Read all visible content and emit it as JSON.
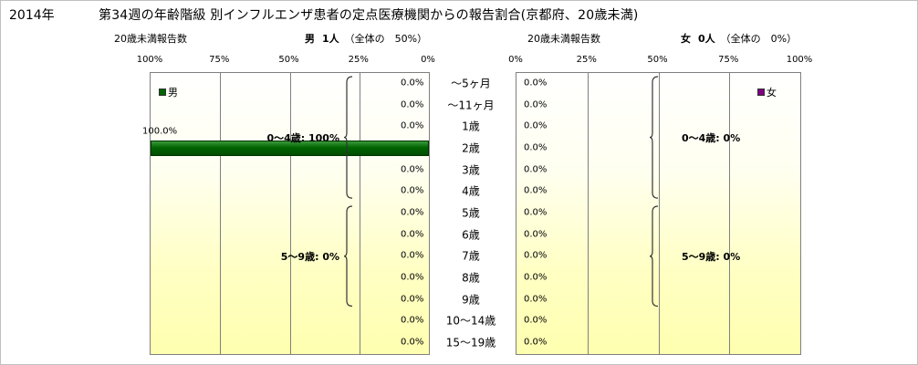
{
  "title": {
    "year": "2014年",
    "main": "第34週の年齢階級 別インフルエンザ患者の定点医療機関からの報告割合(京都府、20歳未満)"
  },
  "chart_data": [
    {
      "type": "bar",
      "orientation": "horizontal",
      "panel": "male",
      "subtitle_left": "20歳未満報告数",
      "subtitle_right_label": "男",
      "subtitle_right_count": "1人",
      "subtitle_right_share": "（全体の　50%）",
      "legend": "男",
      "color": "#006400",
      "direction": "right-to-left",
      "xlim": [
        0,
        100
      ],
      "tick_labels": [
        "100%",
        "75%",
        "50%",
        "25%",
        "0%"
      ],
      "categories": [
        "～5ヶ月",
        "～11ヶ月",
        "1歳",
        "2歳",
        "3歳",
        "4歳",
        "5歳",
        "6歳",
        "7歳",
        "8歳",
        "9歳",
        "10～14歳",
        "15～19歳"
      ],
      "values": [
        0,
        0,
        0,
        100,
        0,
        0,
        0,
        0,
        0,
        0,
        0,
        0,
        0
      ],
      "value_labels": [
        "0.0%",
        "0.0%",
        "0.0%",
        "100.0%",
        "0.0%",
        "0.0%",
        "0.0%",
        "0.0%",
        "0.0%",
        "0.0%",
        "0.0%",
        "0.0%",
        "0.0%"
      ],
      "groups": [
        {
          "label": "0～4歳: 100%",
          "from": 0,
          "to": 5
        },
        {
          "label": "5～9歳: 0%",
          "from": 6,
          "to": 10
        }
      ]
    },
    {
      "type": "bar",
      "orientation": "horizontal",
      "panel": "female",
      "subtitle_left": "20歳未満報告数",
      "subtitle_right_label": "女",
      "subtitle_right_count": "0人",
      "subtitle_right_share": "（全体の　0%）",
      "legend": "女",
      "color": "#800080",
      "direction": "left-to-right",
      "xlim": [
        0,
        100
      ],
      "tick_labels": [
        "0%",
        "25%",
        "50%",
        "75%",
        "100%"
      ],
      "categories": [
        "～5ヶ月",
        "～11ヶ月",
        "1歳",
        "2歳",
        "3歳",
        "4歳",
        "5歳",
        "6歳",
        "7歳",
        "8歳",
        "9歳",
        "10～14歳",
        "15～19歳"
      ],
      "values": [
        0,
        0,
        0,
        0,
        0,
        0,
        0,
        0,
        0,
        0,
        0,
        0,
        0
      ],
      "value_labels": [
        "0.0%",
        "0.0%",
        "0.0%",
        "0.0%",
        "0.0%",
        "0.0%",
        "0.0%",
        "0.0%",
        "0.0%",
        "0.0%",
        "0.0%",
        "0.0%",
        "0.0%"
      ],
      "groups": [
        {
          "label": "0～4歳: 0%",
          "from": 0,
          "to": 5
        },
        {
          "label": "5～9歳: 0%",
          "from": 6,
          "to": 10
        }
      ]
    }
  ]
}
